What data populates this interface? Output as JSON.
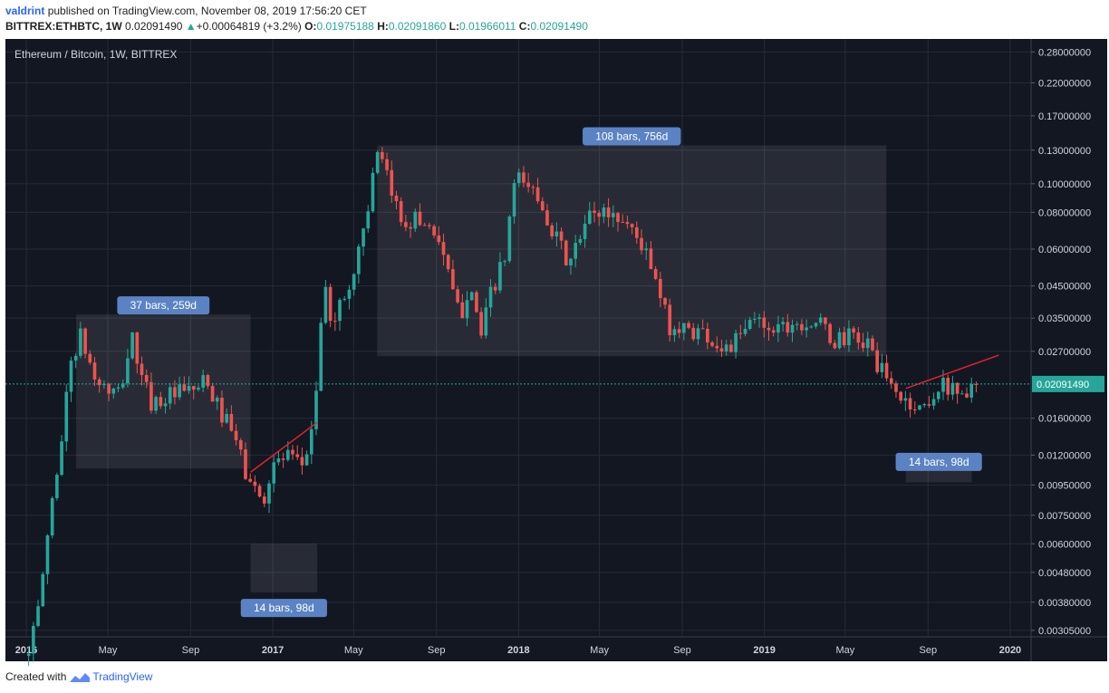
{
  "header": {
    "author": "valdrint",
    "published_text": "published on TradingView.com, November 08, 2019 17:56:20 CET",
    "symbol": "BITTREX:ETHBTC, 1W",
    "last": "0.02091490",
    "change_arrow": "▲",
    "change": "+0.00064819 (+3.2%)",
    "o_label": "O:",
    "o_value": "0.01975188",
    "h_label": "H:",
    "h_value": "0.02091860",
    "l_label": "L:",
    "l_value": "0.01966011",
    "c_label": "C:",
    "c_value": "0.02091490"
  },
  "footer": {
    "created_with": "Created with",
    "brand": "TradingView"
  },
  "colors": {
    "background": "#131722",
    "grid": "#262b38",
    "up": "#26a69a",
    "down": "#ef5350",
    "trendline": "#e5212b",
    "label_bg": "#5b83c4",
    "last_price": "#26a69a"
  },
  "chart_data": {
    "type": "candlestick",
    "title": "Ethereum / Bitcoin, 1W, BITTREX",
    "scale": "log",
    "ylim": [
      0.0029,
      0.31
    ],
    "grid": true,
    "y_ticks": [
      "0.28000000",
      "0.22000000",
      "0.17000000",
      "0.13000000",
      "0.10000000",
      "0.08000000",
      "0.06000000",
      "0.04500000",
      "0.03500000",
      "0.02700000",
      "0.01600000",
      "0.01200000",
      "0.00950000",
      "0.00750000",
      "0.00600000",
      "0.00480000",
      "0.00380000",
      "0.00305000"
    ],
    "x_ticks": [
      "2016",
      "May",
      "Sep",
      "2017",
      "May",
      "Sep",
      "2018",
      "May",
      "Sep",
      "2019",
      "May",
      "Sep",
      "2020"
    ],
    "last_price_label": "0.02091490",
    "anchors": [
      [
        "2016-01-01",
        0.0025
      ],
      [
        "2016-01-20",
        0.0032
      ],
      [
        "2016-02-10",
        0.008
      ],
      [
        "2016-02-25",
        0.013
      ],
      [
        "2016-03-10",
        0.025
      ],
      [
        "2016-03-25",
        0.03
      ],
      [
        "2016-04-15",
        0.022
      ],
      [
        "2016-05-01",
        0.02
      ],
      [
        "2016-05-20",
        0.019
      ],
      [
        "2016-06-10",
        0.03
      ],
      [
        "2016-06-25",
        0.021
      ],
      [
        "2016-07-10",
        0.018
      ],
      [
        "2016-08-01",
        0.019
      ],
      [
        "2016-09-01",
        0.0195
      ],
      [
        "2016-09-25",
        0.021
      ],
      [
        "2016-10-15",
        0.0175
      ],
      [
        "2016-11-10",
        0.0135
      ],
      [
        "2016-11-28",
        0.01
      ],
      [
        "2016-12-20",
        0.0083
      ],
      [
        "2017-01-05",
        0.0112
      ],
      [
        "2017-01-25",
        0.0118
      ],
      [
        "2017-02-15",
        0.0108
      ],
      [
        "2017-03-01",
        0.0135
      ],
      [
        "2017-03-12",
        0.022
      ],
      [
        "2017-03-20",
        0.045
      ],
      [
        "2017-04-01",
        0.035
      ],
      [
        "2017-04-20",
        0.04
      ],
      [
        "2017-05-05",
        0.05
      ],
      [
        "2017-05-15",
        0.065
      ],
      [
        "2017-05-28",
        0.09
      ],
      [
        "2017-06-10",
        0.125
      ],
      [
        "2017-06-25",
        0.1
      ],
      [
        "2017-07-15",
        0.075
      ],
      [
        "2017-08-01",
        0.076
      ],
      [
        "2017-08-20",
        0.074
      ],
      [
        "2017-09-10",
        0.065
      ],
      [
        "2017-09-25",
        0.045
      ],
      [
        "2017-10-10",
        0.035
      ],
      [
        "2017-10-25",
        0.048
      ],
      [
        "2017-11-10",
        0.03
      ],
      [
        "2017-11-25",
        0.043
      ],
      [
        "2017-12-15",
        0.055
      ],
      [
        "2017-12-28",
        0.098
      ],
      [
        "2018-01-10",
        0.103
      ],
      [
        "2018-01-25",
        0.095
      ],
      [
        "2018-02-10",
        0.085
      ],
      [
        "2018-03-01",
        0.065
      ],
      [
        "2018-03-20",
        0.053
      ],
      [
        "2018-04-05",
        0.064
      ],
      [
        "2018-04-20",
        0.078
      ],
      [
        "2018-05-10",
        0.081
      ],
      [
        "2018-06-01",
        0.077
      ],
      [
        "2018-06-20",
        0.072
      ],
      [
        "2018-07-10",
        0.06
      ],
      [
        "2018-07-28",
        0.045
      ],
      [
        "2018-08-15",
        0.033
      ],
      [
        "2018-09-01",
        0.032
      ],
      [
        "2018-09-20",
        0.032
      ],
      [
        "2018-10-10",
        0.031
      ],
      [
        "2018-10-28",
        0.028
      ],
      [
        "2018-11-15",
        0.028
      ],
      [
        "2018-12-01",
        0.03
      ],
      [
        "2018-12-20",
        0.035
      ],
      [
        "2019-01-10",
        0.033
      ],
      [
        "2019-01-25",
        0.033
      ],
      [
        "2019-02-15",
        0.034
      ],
      [
        "2019-03-05",
        0.034
      ],
      [
        "2019-03-25",
        0.034
      ],
      [
        "2019-04-15",
        0.029
      ],
      [
        "2019-05-01",
        0.03
      ],
      [
        "2019-05-20",
        0.03
      ],
      [
        "2019-06-10",
        0.028
      ],
      [
        "2019-07-01",
        0.022
      ],
      [
        "2019-07-20",
        0.0195
      ],
      [
        "2019-08-05",
        0.018
      ],
      [
        "2019-08-25",
        0.0172
      ],
      [
        "2019-09-05",
        0.0185
      ],
      [
        "2019-09-25",
        0.0205
      ],
      [
        "2019-10-15",
        0.021
      ],
      [
        "2019-10-25",
        0.0185
      ],
      [
        "2019-11-08",
        0.0209
      ]
    ],
    "annotations": [
      {
        "text": "37 bars, 259d",
        "range": [
          "2016-03-15",
          "2016-11-29"
        ],
        "ylim": [
          0.0108,
          0.036
        ]
      },
      {
        "text": "108 bars, 756d",
        "range": [
          "2017-06-05",
          "2019-07-01"
        ],
        "ylim": [
          0.026,
          0.135
        ]
      },
      {
        "text": "14 bars, 98d",
        "range": [
          "2016-11-29",
          "2017-03-08"
        ],
        "ylim": [
          0.0041,
          0.006
        ]
      },
      {
        "text": "14 bars, 98d",
        "range": [
          "2019-07-30",
          "2019-11-05"
        ],
        "ylim": [
          0.0097,
          0.0106
        ]
      }
    ],
    "trendlines": [
      {
        "from": [
          "2016-11-29",
          0.0105
        ],
        "to": [
          "2017-03-08",
          0.0155
        ]
      },
      {
        "from": [
          "2019-07-30",
          0.0202
        ],
        "to": [
          "2019-12-15",
          0.0262
        ]
      }
    ]
  }
}
